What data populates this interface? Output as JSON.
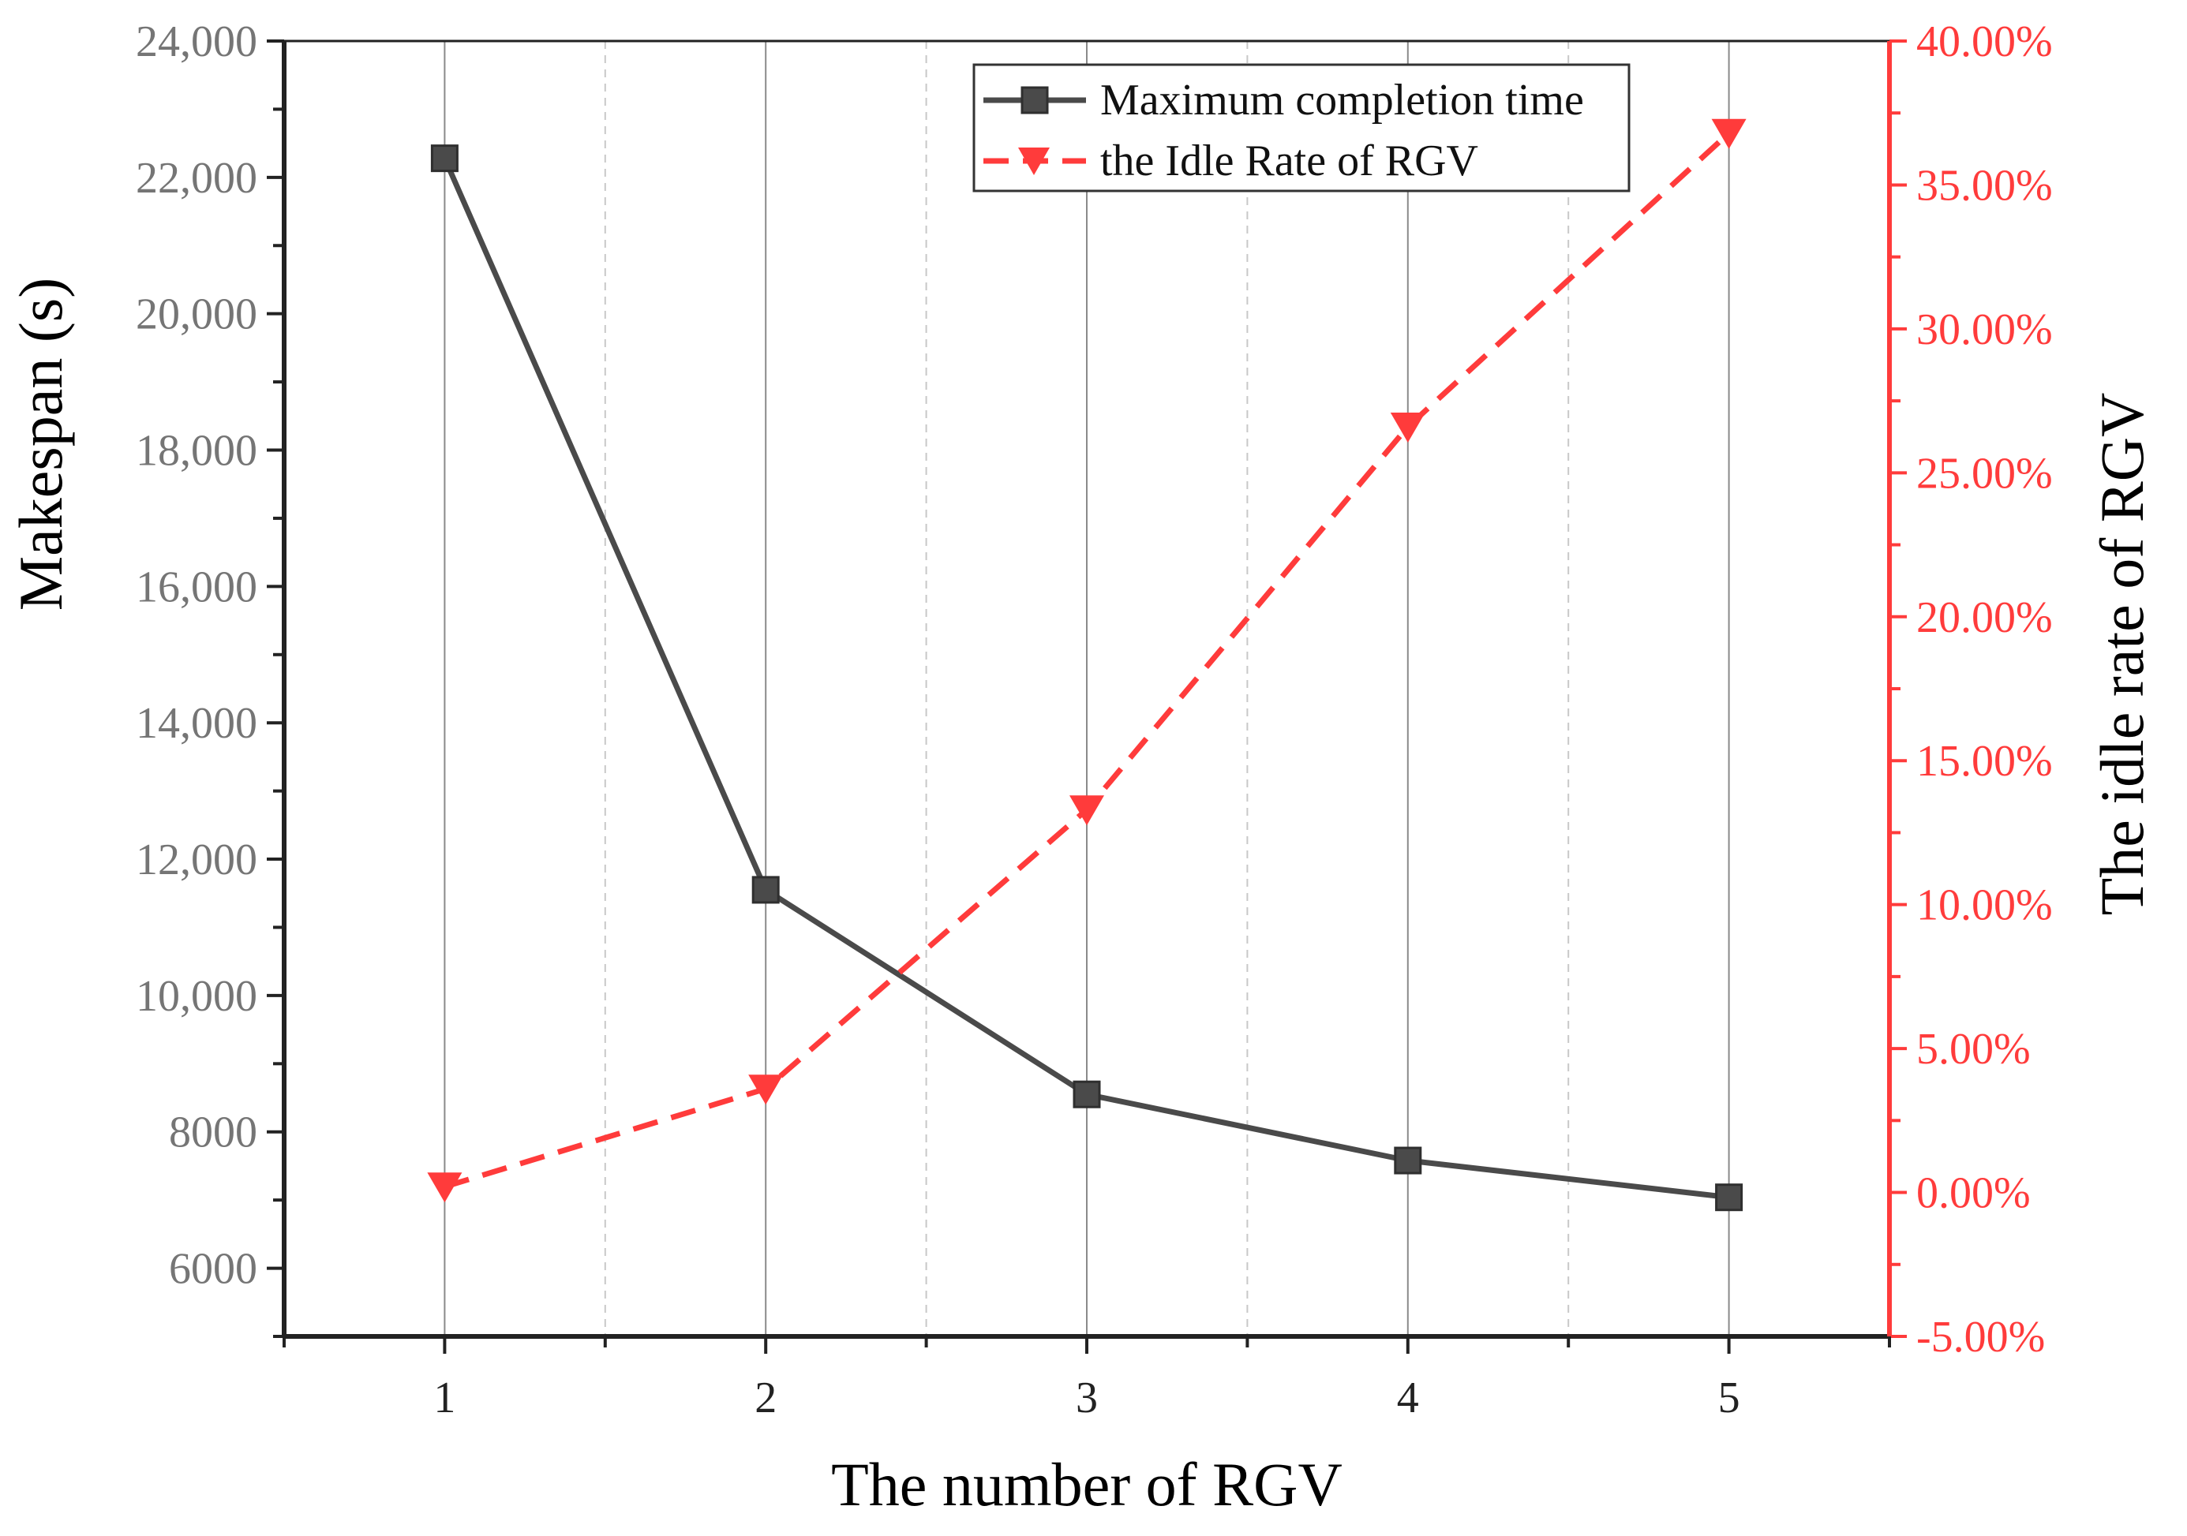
{
  "chart_data": {
    "type": "line",
    "xlabel": "The number of RGV",
    "ylabel": "Makespan (s)",
    "y2label": "The idle rate of RGV",
    "x": [
      1,
      2,
      3,
      4,
      5
    ],
    "x_tick_labels": [
      "1",
      "2",
      "3",
      "4",
      "5"
    ],
    "xlim": [
      0.5,
      5.5
    ],
    "ylim": [
      5000,
      24000
    ],
    "y_ticks": [
      6000,
      8000,
      10000,
      12000,
      14000,
      16000,
      18000,
      20000,
      22000,
      24000
    ],
    "y_tick_labels": [
      "6000",
      "8000",
      "10,000",
      "12,000",
      "14,000",
      "16,000",
      "18,000",
      "20,000",
      "22,000",
      "24,000"
    ],
    "y2lim": [
      -5,
      40
    ],
    "y2_ticks": [
      -5,
      0,
      5,
      10,
      15,
      20,
      25,
      30,
      35,
      40
    ],
    "y2_tick_labels": [
      "-5.00%",
      "0.00%",
      "5.00%",
      "10.00%",
      "15.00%",
      "20.00%",
      "25.00%",
      "30.00%",
      "35.00%",
      "40.00%"
    ],
    "series": [
      {
        "name": "Maximum completion time",
        "axis": "left",
        "marker": "square",
        "line_style": "solid",
        "values": [
          22280,
          11550,
          8550,
          7580,
          7040
        ]
      },
      {
        "name": "the Idle Rate of RGV",
        "axis": "right",
        "marker": "triangle-down",
        "line_style": "dashed",
        "values": [
          0.2,
          3.6,
          13.3,
          26.6,
          36.8
        ]
      }
    ],
    "legend_position": "top-right",
    "grid": "vertical"
  },
  "colors": {
    "series_left": "#4a4a4a",
    "series_right": "#ff3b3b",
    "left_axis_text": "#757575",
    "right_axis": "#ff3b3b",
    "grid_major": "#8a8a8a",
    "grid_minor": "#c8c8c8"
  }
}
